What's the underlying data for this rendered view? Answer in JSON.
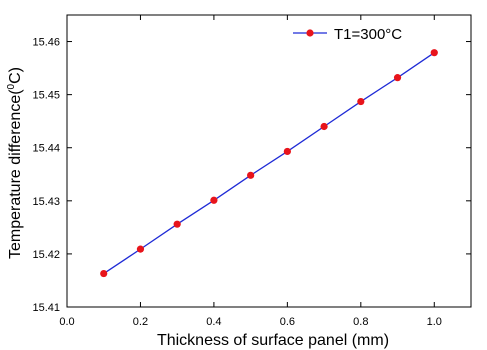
{
  "chart_data": {
    "type": "line",
    "xlabel": "Thickness of surface panel (mm)",
    "ylabel": {
      "main": "Temperature difference(",
      "superscript": "0",
      "unit": "C)"
    },
    "xlim": [
      0.0,
      1.1
    ],
    "ylim": [
      15.41,
      15.465
    ],
    "xticks": [
      0.0,
      0.2,
      0.4,
      0.6,
      0.8,
      1.0
    ],
    "xtick_labels": [
      "0.0",
      "0.2",
      "0.4",
      "0.6",
      "0.8",
      "1.0"
    ],
    "yticks": [
      15.41,
      15.42,
      15.43,
      15.44,
      15.45,
      15.46
    ],
    "ytick_labels": [
      "15.41",
      "15.42",
      "15.43",
      "15.44",
      "15.45",
      "15.46"
    ],
    "grid": false,
    "legend_position": "top-right",
    "series": [
      {
        "name": "T1=300°C",
        "line_color": "#1f2bd6",
        "marker_color": "#e8141b",
        "x": [
          0.1,
          0.2,
          0.3,
          0.4,
          0.5,
          0.6,
          0.7,
          0.8,
          0.9,
          1.0
        ],
        "y": [
          15.4163,
          15.4209,
          15.4256,
          15.4301,
          15.4348,
          15.4393,
          15.444,
          15.4487,
          15.4532,
          15.4579
        ]
      }
    ]
  }
}
